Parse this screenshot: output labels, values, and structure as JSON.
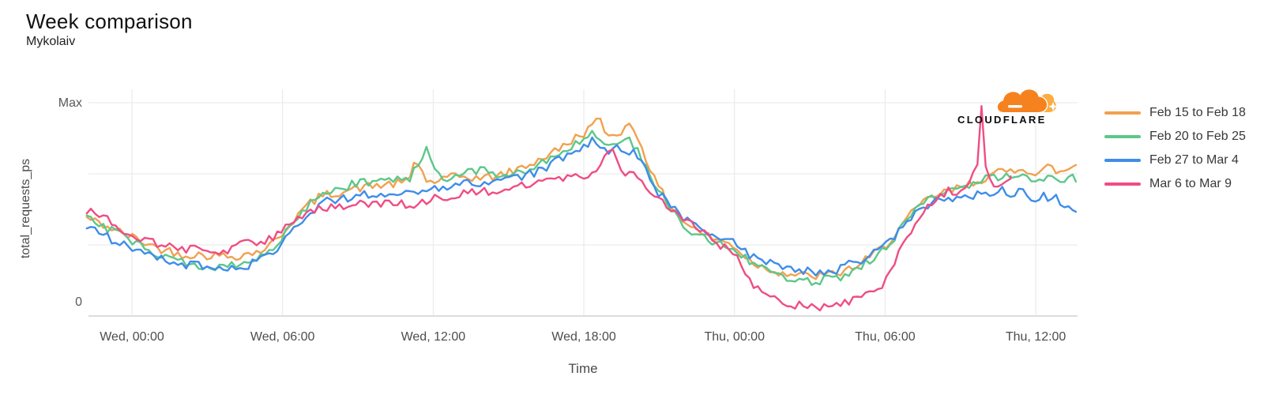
{
  "header": {
    "title": "Week comparison",
    "subtitle": "Mykolaiv"
  },
  "branding": {
    "logo_text": "CLOUDFLARE",
    "cloud_main_color": "#F6821F",
    "cloud_light_color": "#FBAD41"
  },
  "chart_data": {
    "type": "line",
    "title": "Week comparison",
    "subtitle": "Mykolaiv",
    "xlabel": "Time",
    "ylabel": "total_requests_ps",
    "grid": true,
    "legend_position": "right",
    "value_scale": "fraction of Max (0 = bottom tick, 1 = Max tick)",
    "hours_domain": [
      -1.8,
      37.6
    ],
    "y_ticks": [
      {
        "label": "Max",
        "value": 1
      },
      {
        "label": "0",
        "value": 0
      }
    ],
    "x_ticks": [
      {
        "label": "Wed, 00:00",
        "hour": 0
      },
      {
        "label": "Wed, 06:00",
        "hour": 6
      },
      {
        "label": "Wed, 12:00",
        "hour": 12
      },
      {
        "label": "Wed, 18:00",
        "hour": 18
      },
      {
        "label": "Thu, 00:00",
        "hour": 24
      },
      {
        "label": "Thu, 06:00",
        "hour": 30
      },
      {
        "label": "Thu, 12:00",
        "hour": 36
      }
    ],
    "series": [
      {
        "name": "Feb 15 to Feb 18",
        "color": "#F1A14F",
        "end_hour": 37.6,
        "points": [
          [
            -1.8,
            0.46
          ],
          [
            -1,
            0.42
          ],
          [
            0,
            0.37
          ],
          [
            1,
            0.32
          ],
          [
            2,
            0.29
          ],
          [
            3,
            0.285
          ],
          [
            4,
            0.28
          ],
          [
            5,
            0.3
          ],
          [
            5.5,
            0.33
          ],
          [
            6,
            0.39
          ],
          [
            6.5,
            0.46
          ],
          [
            7,
            0.52
          ],
          [
            7.5,
            0.56
          ],
          [
            8,
            0.575
          ],
          [
            9,
            0.6
          ],
          [
            10,
            0.615
          ],
          [
            11,
            0.625
          ],
          [
            11.3,
            0.74
          ],
          [
            11.8,
            0.62
          ],
          [
            12,
            0.63
          ],
          [
            13,
            0.655
          ],
          [
            14,
            0.645
          ],
          [
            15,
            0.67
          ],
          [
            16,
            0.72
          ],
          [
            17,
            0.78
          ],
          [
            17.6,
            0.83
          ],
          [
            18,
            0.86
          ],
          [
            18.6,
            0.92
          ],
          [
            19,
            0.84
          ],
          [
            19.5,
            0.87
          ],
          [
            19.9,
            0.9
          ],
          [
            20.3,
            0.8
          ],
          [
            20.8,
            0.64
          ],
          [
            21.3,
            0.54
          ],
          [
            22,
            0.44
          ],
          [
            23,
            0.37
          ],
          [
            24,
            0.33
          ],
          [
            24.5,
            0.27
          ],
          [
            25,
            0.235
          ],
          [
            26,
            0.2
          ],
          [
            27,
            0.185
          ],
          [
            28,
            0.195
          ],
          [
            29,
            0.24
          ],
          [
            30,
            0.33
          ],
          [
            30.5,
            0.4
          ],
          [
            31,
            0.47
          ],
          [
            31.5,
            0.53
          ],
          [
            32,
            0.565
          ],
          [
            33,
            0.6
          ],
          [
            34,
            0.65
          ],
          [
            34.5,
            0.67
          ],
          [
            35,
            0.68
          ],
          [
            35.5,
            0.7
          ],
          [
            36,
            0.66
          ],
          [
            36.5,
            0.7
          ],
          [
            37,
            0.67
          ],
          [
            37.6,
            0.71
          ]
        ]
      },
      {
        "name": "Feb 20 to Feb 25",
        "color": "#5CC78B",
        "end_hour": 37.6,
        "points": [
          [
            -1.8,
            0.47
          ],
          [
            -1,
            0.41
          ],
          [
            0,
            0.35
          ],
          [
            1,
            0.29
          ],
          [
            2,
            0.255
          ],
          [
            3,
            0.235
          ],
          [
            4,
            0.235
          ],
          [
            5,
            0.26
          ],
          [
            5.5,
            0.3
          ],
          [
            6,
            0.37
          ],
          [
            6.5,
            0.45
          ],
          [
            7,
            0.52
          ],
          [
            7.5,
            0.565
          ],
          [
            8,
            0.59
          ],
          [
            9,
            0.625
          ],
          [
            10,
            0.64
          ],
          [
            11,
            0.635
          ],
          [
            11.7,
            0.78
          ],
          [
            12.3,
            0.64
          ],
          [
            13,
            0.66
          ],
          [
            14,
            0.68
          ],
          [
            15,
            0.655
          ],
          [
            16,
            0.7
          ],
          [
            17,
            0.76
          ],
          [
            18,
            0.82
          ],
          [
            18.4,
            0.86
          ],
          [
            19,
            0.79
          ],
          [
            19.7,
            0.84
          ],
          [
            20.2,
            0.76
          ],
          [
            20.8,
            0.62
          ],
          [
            21.3,
            0.53
          ],
          [
            22,
            0.42
          ],
          [
            23,
            0.355
          ],
          [
            24,
            0.32
          ],
          [
            24.5,
            0.26
          ],
          [
            25,
            0.22
          ],
          [
            26,
            0.185
          ],
          [
            27,
            0.165
          ],
          [
            28,
            0.175
          ],
          [
            29,
            0.225
          ],
          [
            30,
            0.32
          ],
          [
            30.5,
            0.39
          ],
          [
            31,
            0.46
          ],
          [
            31.5,
            0.525
          ],
          [
            32,
            0.56
          ],
          [
            33,
            0.605
          ],
          [
            34,
            0.64
          ],
          [
            34.5,
            0.655
          ],
          [
            35,
            0.66
          ],
          [
            35.5,
            0.655
          ],
          [
            36,
            0.64
          ],
          [
            36.5,
            0.66
          ],
          [
            37,
            0.615
          ],
          [
            37.6,
            0.65
          ]
        ]
      },
      {
        "name": "Feb 27 to Mar 4",
        "color": "#3F8DE9",
        "end_hour": 37.6,
        "points": [
          [
            -1.8,
            0.41
          ],
          [
            -1,
            0.37
          ],
          [
            0,
            0.32
          ],
          [
            1,
            0.27
          ],
          [
            2,
            0.245
          ],
          [
            3,
            0.23
          ],
          [
            4,
            0.225
          ],
          [
            5,
            0.25
          ],
          [
            5.5,
            0.29
          ],
          [
            6,
            0.35
          ],
          [
            6.5,
            0.42
          ],
          [
            7,
            0.48
          ],
          [
            7.5,
            0.525
          ],
          [
            8,
            0.545
          ],
          [
            9,
            0.565
          ],
          [
            10,
            0.575
          ],
          [
            11,
            0.575
          ],
          [
            12,
            0.59
          ],
          [
            13,
            0.615
          ],
          [
            14,
            0.625
          ],
          [
            15,
            0.635
          ],
          [
            16,
            0.67
          ],
          [
            17,
            0.73
          ],
          [
            18,
            0.8
          ],
          [
            18.4,
            0.83
          ],
          [
            19,
            0.77
          ],
          [
            19.4,
            0.8
          ],
          [
            20,
            0.76
          ],
          [
            20.5,
            0.68
          ],
          [
            21,
            0.57
          ],
          [
            22,
            0.455
          ],
          [
            22.6,
            0.43
          ],
          [
            23,
            0.39
          ],
          [
            24,
            0.35
          ],
          [
            24.5,
            0.29
          ],
          [
            25,
            0.26
          ],
          [
            26,
            0.225
          ],
          [
            27,
            0.205
          ],
          [
            28,
            0.215
          ],
          [
            29,
            0.26
          ],
          [
            30,
            0.335
          ],
          [
            30.5,
            0.39
          ],
          [
            31,
            0.45
          ],
          [
            31.5,
            0.5
          ],
          [
            32,
            0.545
          ],
          [
            33,
            0.56
          ],
          [
            34,
            0.575
          ],
          [
            34.6,
            0.59
          ],
          [
            35,
            0.56
          ],
          [
            35.4,
            0.59
          ],
          [
            36,
            0.545
          ],
          [
            36.3,
            0.565
          ],
          [
            36.8,
            0.55
          ],
          [
            37.2,
            0.52
          ],
          [
            37.6,
            0.5
          ]
        ]
      },
      {
        "name": "Mar 6 to Mar 9",
        "color": "#EF4D84",
        "end_hour": 35.0,
        "points": [
          [
            -1.8,
            0.5
          ],
          [
            -1,
            0.45
          ],
          [
            0,
            0.385
          ],
          [
            1,
            0.335
          ],
          [
            2,
            0.315
          ],
          [
            3,
            0.305
          ],
          [
            4,
            0.315
          ],
          [
            4.5,
            0.345
          ],
          [
            5,
            0.32
          ],
          [
            5.5,
            0.36
          ],
          [
            6,
            0.41
          ],
          [
            6.5,
            0.46
          ],
          [
            7,
            0.49
          ],
          [
            7.5,
            0.51
          ],
          [
            8,
            0.515
          ],
          [
            9,
            0.525
          ],
          [
            10,
            0.53
          ],
          [
            11,
            0.52
          ],
          [
            12,
            0.55
          ],
          [
            13,
            0.565
          ],
          [
            14,
            0.585
          ],
          [
            15,
            0.6
          ],
          [
            16,
            0.625
          ],
          [
            17,
            0.635
          ],
          [
            18,
            0.66
          ],
          [
            18.5,
            0.68
          ],
          [
            19.2,
            0.79
          ],
          [
            19.6,
            0.655
          ],
          [
            20,
            0.67
          ],
          [
            20.5,
            0.615
          ],
          [
            21,
            0.545
          ],
          [
            22,
            0.45
          ],
          [
            23,
            0.37
          ],
          [
            24,
            0.29
          ],
          [
            24.5,
            0.18
          ],
          [
            25,
            0.115
          ],
          [
            25.5,
            0.085
          ],
          [
            26,
            0.07
          ],
          [
            26.5,
            0.05
          ],
          [
            27,
            0.055
          ],
          [
            27.5,
            0.045
          ],
          [
            28,
            0.05
          ],
          [
            28.5,
            0.06
          ],
          [
            29,
            0.08
          ],
          [
            29.3,
            0.125
          ],
          [
            29.6,
            0.1
          ],
          [
            30,
            0.17
          ],
          [
            30.5,
            0.28
          ],
          [
            31,
            0.4
          ],
          [
            31.5,
            0.5
          ],
          [
            32,
            0.55
          ],
          [
            32.5,
            0.59
          ],
          [
            33,
            0.585
          ],
          [
            33.4,
            0.625
          ],
          [
            33.67,
            0.72
          ],
          [
            33.82,
            1.03
          ],
          [
            33.97,
            0.7
          ],
          [
            34.2,
            0.63
          ],
          [
            34.6,
            0.6
          ],
          [
            35.0,
            0.66
          ]
        ]
      }
    ]
  }
}
